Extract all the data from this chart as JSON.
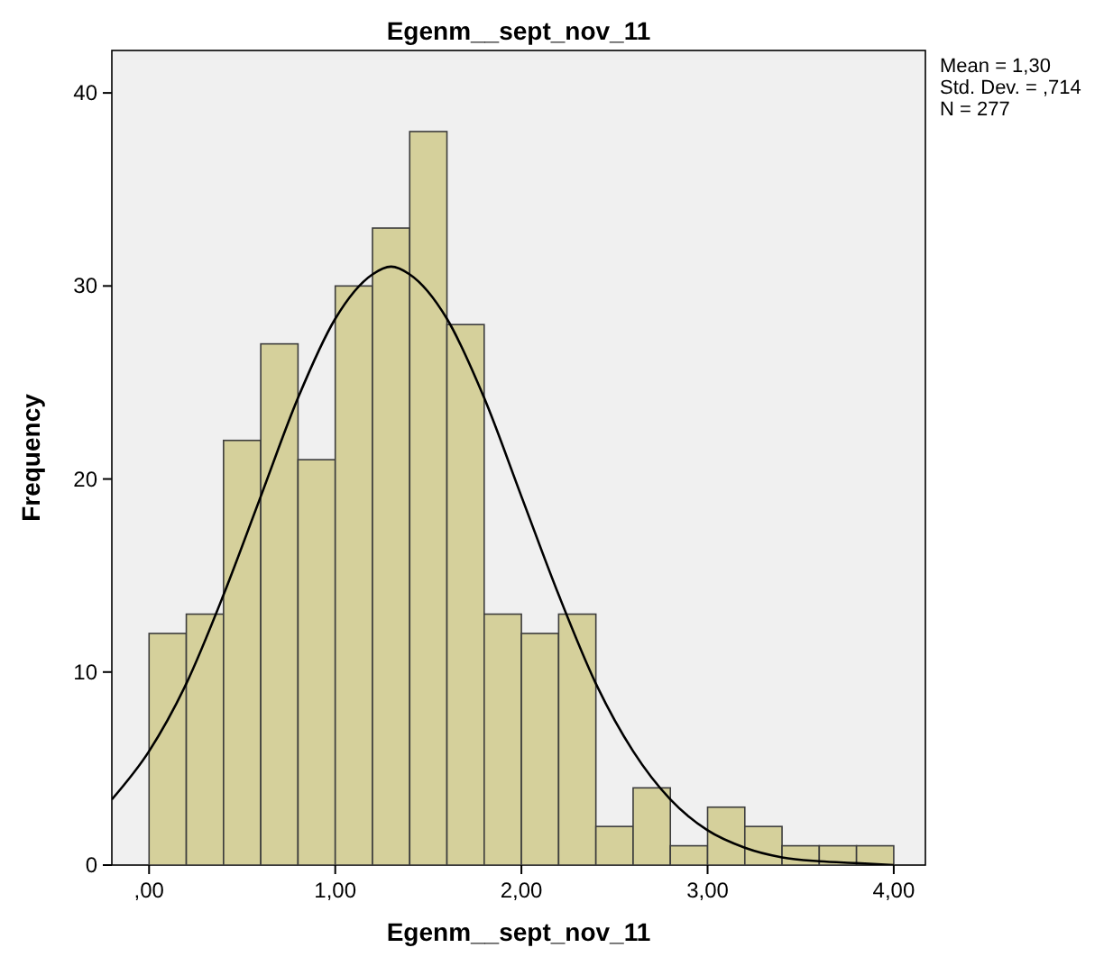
{
  "chart_data": {
    "type": "histogram",
    "title": "Egenm__sept_nov_11",
    "xlabel": "Egenm__sept_nov_11",
    "ylabel": "Frequency",
    "bins": [
      0,
      0.2,
      0.4,
      0.6,
      0.8,
      1.0,
      1.2,
      1.4,
      1.6,
      1.8,
      2.0,
      2.2,
      2.4,
      2.6,
      2.8,
      3.0,
      3.2,
      3.4,
      3.6,
      3.8,
      4.0
    ],
    "values": [
      12,
      13,
      22,
      27,
      21,
      30,
      33,
      38,
      28,
      13,
      12,
      13,
      2,
      4,
      1,
      3,
      2,
      1,
      1,
      1
    ],
    "color": "#d5d09b",
    "series": [
      {
        "type": "line",
        "color": "#000000",
        "x": [
          -0.2,
          0,
          0.2,
          0.4,
          0.6,
          0.8,
          1.0,
          1.2,
          1.3,
          1.4,
          1.6,
          1.8,
          2.0,
          2.2,
          2.4,
          2.6,
          2.8,
          3.0,
          3.2,
          3.4,
          3.6,
          3.8,
          4.0
        ],
        "values": [
          3.4,
          5.9,
          9.4,
          14.0,
          19.1,
          24.2,
          28.3,
          30.6,
          31.0,
          30.6,
          28.3,
          24.2,
          19.1,
          14.0,
          9.4,
          5.9,
          3.4,
          1.8,
          0.9,
          0.4,
          0.2,
          0.1,
          0
        ]
      }
    ],
    "xlim": [
      -0.2,
      4.17
    ],
    "ylim": [
      0,
      42.2
    ],
    "xticks": [
      {
        "value": 0,
        "label": ",00"
      },
      {
        "value": 1,
        "label": "1,00"
      },
      {
        "value": 2,
        "label": "2,00"
      },
      {
        "value": 3,
        "label": "3,00"
      },
      {
        "value": 4,
        "label": "4,00"
      }
    ],
    "yticks": [
      0,
      10,
      20,
      30,
      40
    ],
    "annotations": [
      "Mean = 1,30",
      "Std. Dev. = ,714",
      "N = 277"
    ],
    "grid": false,
    "marker": "none",
    "line_style": "solid"
  }
}
